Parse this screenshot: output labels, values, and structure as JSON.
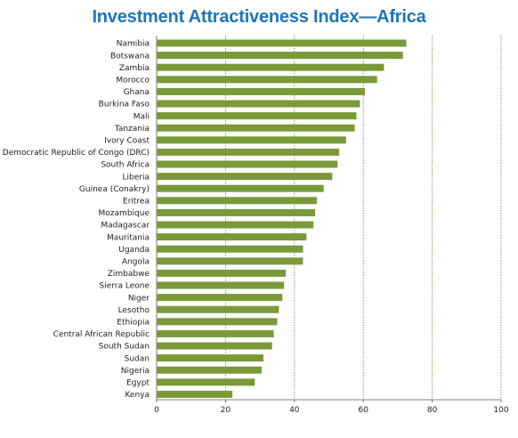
{
  "chart_data": {
    "type": "bar",
    "orientation": "horizontal",
    "title": "Investment Attractiveness Index—Africa",
    "categories": [
      "Namibia",
      "Botswana",
      "Zambia",
      "Morocco",
      "Ghana",
      "Burkina Faso",
      "Mali",
      "Tanzania",
      "Ivory Coast",
      "Democratic Republic of Congo (DRC)",
      "South Africa",
      "Liberia",
      "Guinea (Conakry)",
      "Eritrea",
      "Mozambique",
      "Madagascar",
      "Mauritania",
      "Uganda",
      "Angola",
      "Zimbabwe",
      "Sierra Leone",
      "Niger",
      "Lesotho",
      "Ethiopia",
      "Central African Republic",
      "South Sudan",
      "Sudan",
      "Nigeria",
      "Egypt",
      "Kenya"
    ],
    "values": [
      72.5,
      71.5,
      66,
      64,
      60.5,
      59,
      58,
      57.5,
      55,
      53,
      52.5,
      51,
      48.5,
      46.5,
      46,
      45.5,
      43.5,
      42.5,
      42.5,
      37.5,
      37,
      36.5,
      35.5,
      35,
      34,
      33.5,
      31,
      30.5,
      28.5,
      22
    ],
    "xlim": [
      0,
      100
    ],
    "xticks": [
      0,
      20,
      40,
      60,
      80,
      100
    ],
    "xtick_labels": [
      "0",
      "20",
      "40",
      "60",
      "80",
      "100"
    ],
    "grid": "vertical dotted",
    "bar_color": "#7a9a3a",
    "title_color": "#1e76b5"
  }
}
